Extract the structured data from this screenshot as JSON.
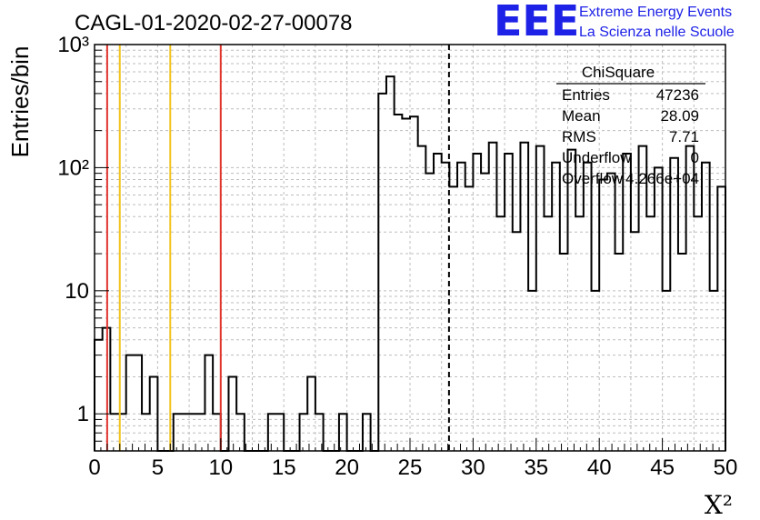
{
  "chart_data": {
    "type": "bar",
    "title": "CAGL-01-2020-02-27-00078",
    "xlabel": "X²",
    "ylabel": "Entries/bin",
    "xlim": [
      0,
      50
    ],
    "ylim": [
      0.5,
      1000
    ],
    "log_y": true,
    "grid": true,
    "bin_width": 0.625,
    "x_ticks": [
      0,
      5,
      10,
      15,
      20,
      25,
      30,
      35,
      40,
      45,
      50
    ],
    "x_tick_labels": [
      "0",
      "5",
      "10",
      "15",
      "20",
      "25",
      "30",
      "35",
      "40",
      "45",
      "50"
    ],
    "y_ticks": [
      1,
      10,
      100,
      1000
    ],
    "y_tick_labels": [
      "1",
      "10",
      "10²",
      "10³"
    ],
    "values": [
      4,
      5,
      1,
      1,
      3,
      3,
      1,
      2,
      0,
      0,
      1,
      1,
      1,
      1,
      3,
      1,
      0,
      2,
      1,
      0,
      0,
      0,
      1,
      1,
      0,
      0,
      1,
      2,
      1,
      0,
      0,
      1,
      0,
      0,
      1,
      0,
      400,
      550,
      270,
      250,
      260,
      150,
      90,
      130,
      110,
      70,
      110,
      70,
      130,
      90,
      160,
      40,
      130,
      30,
      160,
      10,
      150,
      40,
      110,
      20,
      140,
      40,
      110,
      10,
      80,
      90,
      20,
      130,
      30,
      150,
      40,
      100,
      10,
      120,
      20,
      150,
      40,
      110,
      10,
      70
    ],
    "vertical_lines": [
      {
        "x": 1,
        "color": "#e0342c",
        "style": "solid"
      },
      {
        "x": 2,
        "color": "#f2c31b",
        "style": "solid"
      },
      {
        "x": 6,
        "color": "#f2c31b",
        "style": "solid"
      },
      {
        "x": 10,
        "color": "#e0342c",
        "style": "solid"
      },
      {
        "x": 28.09,
        "color": "#000000",
        "style": "dashed"
      }
    ]
  },
  "stats": {
    "title": "ChiSquare",
    "rows": [
      {
        "label": "Entries",
        "value": "47236"
      },
      {
        "label": "Mean",
        "value": "28.09"
      },
      {
        "label": "RMS",
        "value": "7.71"
      },
      {
        "label": "Underflow",
        "value": "0"
      },
      {
        "label": "Overflow",
        "value": "4.266e+04"
      }
    ]
  },
  "logo": {
    "big": "EEE",
    "line1": "Extreme Energy Events",
    "line2": "La Scienza nelle Scuole"
  }
}
